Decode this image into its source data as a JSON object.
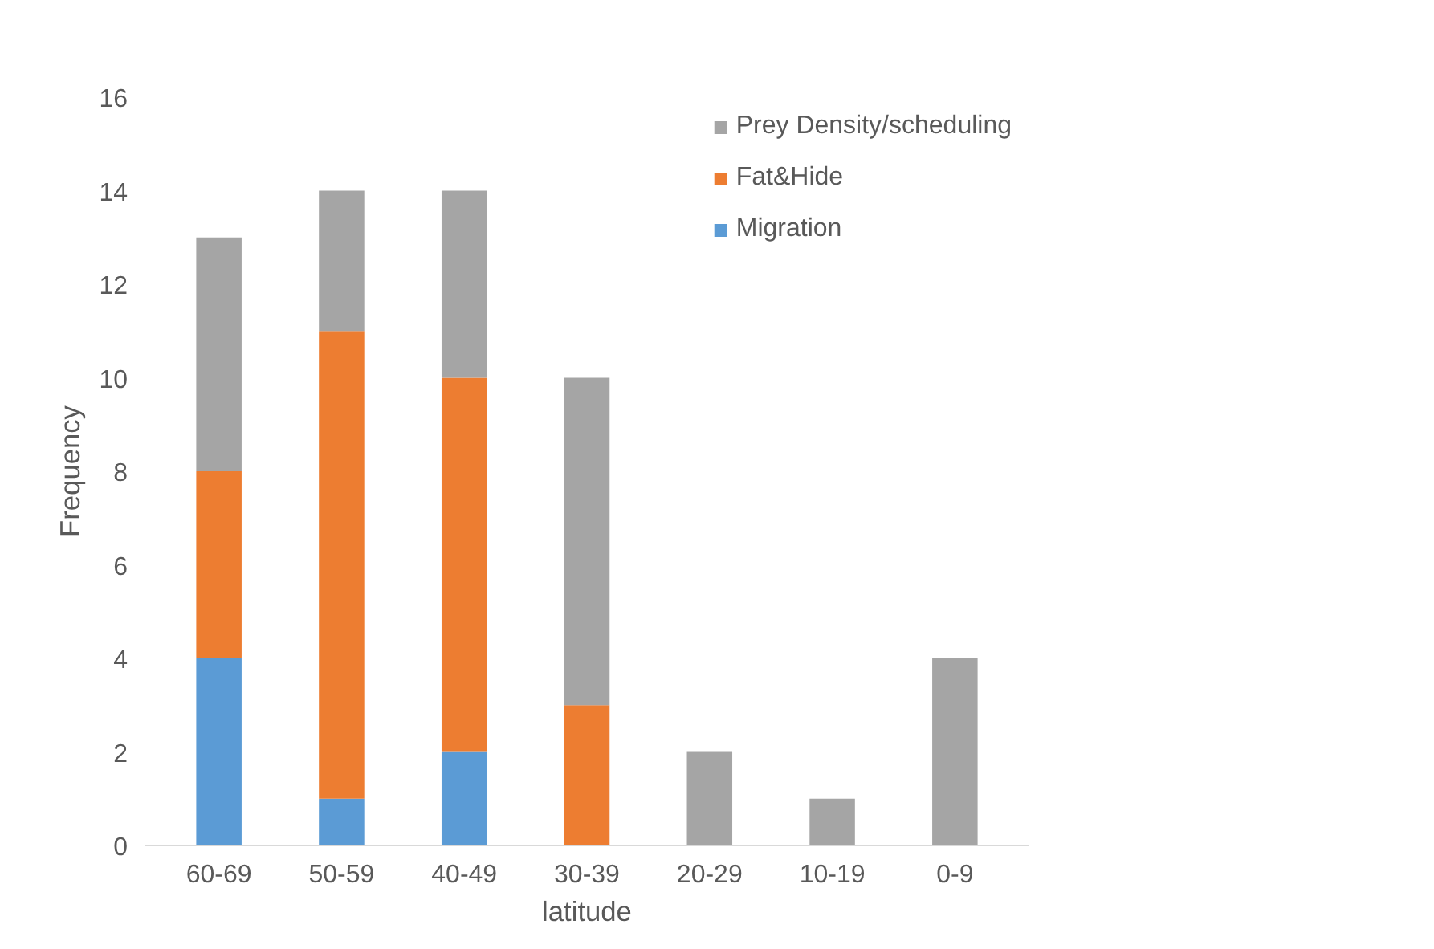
{
  "chart_data": {
    "type": "bar",
    "stacked": true,
    "xlabel": "latitude",
    "ylabel": "Frequency",
    "categories": [
      "60-69",
      "50-59",
      "40-49",
      "30-39",
      "20-29",
      "10-19",
      "0-9"
    ],
    "series": [
      {
        "name": "Migration",
        "color": "#5b9bd5",
        "values": [
          4,
          1,
          2,
          0,
          0,
          0,
          0
        ]
      },
      {
        "name": "Fat&Hide",
        "color": "#ed7d31",
        "values": [
          4,
          10,
          8,
          3,
          0,
          0,
          0
        ]
      },
      {
        "name": "Prey Density/scheduling",
        "color": "#a5a5a5",
        "values": [
          5,
          3,
          4,
          7,
          2,
          1,
          4
        ]
      }
    ],
    "ylim": [
      0,
      16
    ],
    "yticks": [
      0,
      2,
      4,
      6,
      8,
      10,
      12,
      14,
      16
    ],
    "grid": false,
    "legend": "top right"
  }
}
